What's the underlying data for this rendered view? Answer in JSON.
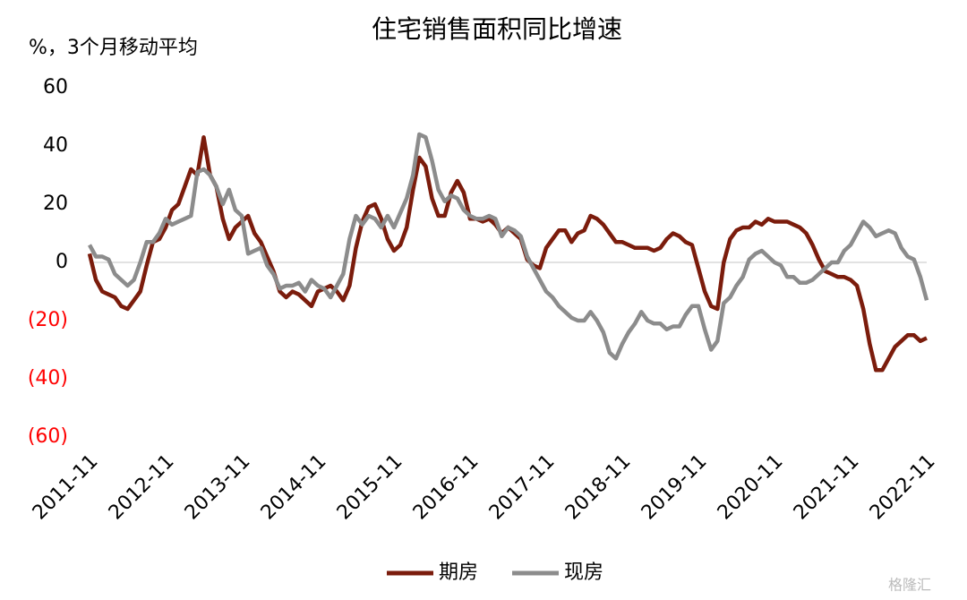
{
  "chart_data": {
    "type": "line",
    "title": "住宅销售面积同比增速",
    "y_label": "%，3个月移动平均",
    "watermark": "格隆汇",
    "categories": [
      "2011-11",
      null,
      null,
      null,
      null,
      null,
      null,
      null,
      null,
      null,
      null,
      null,
      "2012-11",
      null,
      null,
      null,
      null,
      null,
      null,
      null,
      null,
      null,
      null,
      null,
      "2013-11",
      null,
      null,
      null,
      null,
      null,
      null,
      null,
      null,
      null,
      null,
      null,
      "2014-11",
      null,
      null,
      null,
      null,
      null,
      null,
      null,
      null,
      null,
      null,
      null,
      "2015-11",
      null,
      null,
      null,
      null,
      null,
      null,
      null,
      null,
      null,
      null,
      null,
      "2016-11",
      null,
      null,
      null,
      null,
      null,
      null,
      null,
      null,
      null,
      null,
      null,
      "2017-11",
      null,
      null,
      null,
      null,
      null,
      null,
      null,
      null,
      null,
      null,
      null,
      "2018-11",
      null,
      null,
      null,
      null,
      null,
      null,
      null,
      null,
      null,
      null,
      null,
      "2019-11",
      null,
      null,
      null,
      null,
      null,
      null,
      null,
      null,
      null,
      null,
      null,
      "2020-11",
      null,
      null,
      null,
      null,
      null,
      null,
      null,
      null,
      null,
      null,
      null,
      "2021-11",
      null,
      null,
      null,
      null,
      null,
      null,
      null,
      null,
      null,
      null,
      null,
      "2022-11"
    ],
    "series": [
      {
        "name": "期房",
        "color": "#7b1c0c",
        "values": [
          3,
          -6,
          -10,
          -11,
          -12,
          -15,
          -16,
          -13,
          -10,
          -1,
          7,
          8,
          12,
          18,
          20,
          26,
          32,
          30,
          43,
          30,
          26,
          15,
          8,
          12,
          14,
          16,
          10,
          7,
          2,
          -3,
          -10,
          -12,
          -10,
          -11,
          -13,
          -15,
          -10,
          -9,
          -8,
          -10,
          -13,
          -8,
          5,
          14,
          19,
          20,
          15,
          8,
          4,
          6,
          12,
          25,
          36,
          33,
          22,
          16,
          16,
          24,
          28,
          24,
          15,
          15,
          14,
          15,
          13,
          10,
          12,
          10,
          8,
          1,
          -1,
          -2,
          5,
          8,
          11,
          11,
          7,
          10,
          11,
          16,
          15,
          13,
          10,
          7,
          7,
          6,
          5,
          5,
          5,
          4,
          5,
          8,
          10,
          9,
          7,
          6,
          -2,
          -10,
          -15,
          -16,
          0,
          8,
          11,
          12,
          12,
          14,
          13,
          15,
          14,
          14,
          14,
          13,
          12,
          10,
          6,
          1,
          -3,
          -4,
          -5,
          -5,
          -6,
          -8,
          -16,
          -28,
          -37,
          -37,
          -33,
          -29,
          -27,
          -25,
          -25,
          -27,
          -26
        ]
      },
      {
        "name": "现房",
        "color": "#8c8c8c",
        "values": [
          6,
          2,
          2,
          1,
          -4,
          -6,
          -8,
          -6,
          0,
          7,
          7,
          10,
          15,
          13,
          14,
          15,
          16,
          31,
          32,
          30,
          26,
          20,
          25,
          18,
          16,
          3,
          4,
          5,
          -1,
          -4,
          -9,
          -8,
          -8,
          -7,
          -10,
          -6,
          -8,
          -9,
          -12,
          -8,
          -4,
          8,
          16,
          13,
          16,
          15,
          12,
          16,
          12,
          17,
          22,
          30,
          44,
          43,
          35,
          25,
          21,
          23,
          22,
          18,
          16,
          15,
          15,
          16,
          15,
          9,
          12,
          11,
          9,
          2,
          -2,
          -6,
          -10,
          -12,
          -15,
          -17,
          -19,
          -20,
          -20,
          -17,
          -20,
          -24,
          -31,
          -33,
          -28,
          -24,
          -21,
          -17,
          -20,
          -21,
          -21,
          -23,
          -22,
          -22,
          -18,
          -15,
          -15,
          -23,
          -30,
          -27,
          -14,
          -12,
          -8,
          -5,
          1,
          3,
          4,
          2,
          0,
          -1,
          -5,
          -5,
          -7,
          -7,
          -6,
          -4,
          -2,
          0,
          0,
          4,
          6,
          10,
          14,
          12,
          9,
          10,
          11,
          10,
          5,
          2,
          1,
          -5,
          -13
        ]
      }
    ],
    "ylim": [
      -60,
      60
    ],
    "yticks": [
      60,
      40,
      20,
      0,
      {
        "value": -20,
        "label": "(20)"
      },
      {
        "value": -40,
        "label": "(40)"
      },
      {
        "value": -60,
        "label": "(60)"
      }
    ],
    "negative_tick_color": "#ff0000",
    "grid": false,
    "legend": "bottom"
  }
}
